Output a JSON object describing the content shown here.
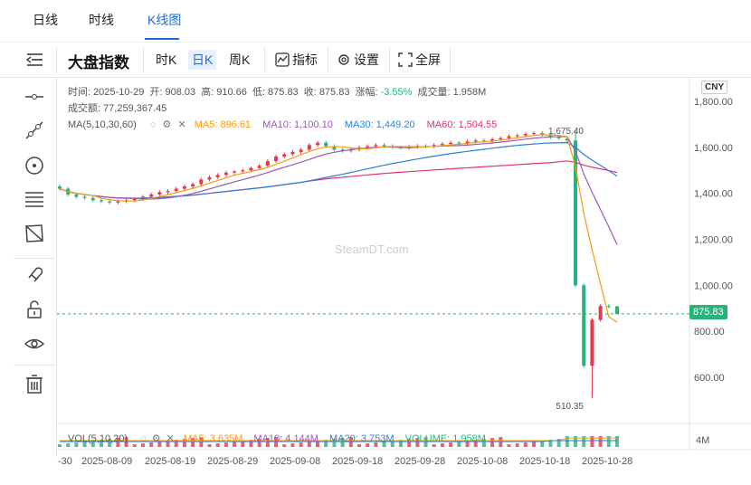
{
  "tabs": [
    {
      "label": "日线"
    },
    {
      "label": "时线"
    },
    {
      "label": "K线图"
    }
  ],
  "toolbar": {
    "title": "大盘指数",
    "intervals": [
      "时K",
      "日K",
      "周K"
    ],
    "indicator_label": "指标",
    "settings_label": "设置",
    "fullscreen_label": "全屏"
  },
  "info": {
    "time_label": "时间:",
    "time": "2025-10-29",
    "open_label": "开:",
    "open": "908.03",
    "high_label": "高:",
    "high": "910.66",
    "low_label": "低:",
    "low": "875.83",
    "close_label": "收:",
    "close": "875.83",
    "change_label": "涨幅:",
    "change": "-3.55%",
    "volume_label": "成交量:",
    "volume": "1.958M",
    "turnover_label": "成交额:",
    "turnover": "77,259,367.45"
  },
  "ma_legend": {
    "name": "MA(5,10,30,60)",
    "ma5": "MA5: 896.61",
    "ma10": "MA10: 1,100.10",
    "ma30": "MA30: 1,449.20",
    "ma60": "MA60: 1,504.55"
  },
  "vol_legend": {
    "name": "VOL(5,10,20)",
    "ma5": "MA5: 3.635M",
    "ma10": "MA10: 4.144M",
    "ma20": "MA20: 3.753M",
    "volume": "VOLUME: 1.958M"
  },
  "currency": "CNY",
  "current_price": "875.83",
  "watermark": "SteamDT.com",
  "annotations": {
    "high_mark": "1,675.40",
    "low_mark": "510.35"
  },
  "y_axis_labels": [
    "1,800.00",
    "1,600.00",
    "1,400.00",
    "1,200.00",
    "1,000.00",
    "800.00",
    "600.00"
  ],
  "vol_axis_label": "4M",
  "x_axis_labels": [
    "-30",
    "2025-08-09",
    "2025-08-19",
    "2025-08-29",
    "2025-09-08",
    "2025-09-18",
    "2025-09-28",
    "2025-10-08",
    "2025-10-18",
    "2025-10-28"
  ],
  "colors": {
    "up": "#e8364c",
    "down": "#2ab27b",
    "ma5": "#f39c12",
    "ma10": "#9b59b6",
    "ma30": "#2f7fd8",
    "ma60": "#e0336f",
    "accent": "#1e6bd6"
  },
  "chart_data": {
    "type": "candlestick",
    "y_range": [
      450,
      1850
    ],
    "closes_series": [
      1420,
      1395,
      1385,
      1380,
      1370,
      1365,
      1360,
      1365,
      1370,
      1375,
      1385,
      1395,
      1405,
      1410,
      1420,
      1430,
      1440,
      1460,
      1470,
      1480,
      1490,
      1495,
      1500,
      1510,
      1520,
      1540,
      1560,
      1570,
      1580,
      1590,
      1610,
      1620,
      1605,
      1590,
      1585,
      1590,
      1600,
      1605,
      1610,
      1605,
      1600,
      1598,
      1602,
      1606,
      1604,
      1610,
      1615,
      1620,
      1618,
      1625,
      1630,
      1628,
      1635,
      1640,
      1648,
      1652,
      1658,
      1662,
      1655,
      1645,
      1640,
      1630,
      1000,
      650,
      850,
      910,
      908,
      876
    ],
    "last_candle": {
      "date": "2025-10-29",
      "open": 908.03,
      "high": 910.66,
      "low": 875.83,
      "close": 875.83
    },
    "ma_series_end": {
      "ma5": 896.61,
      "ma10": 1100.1,
      "ma30": 1449.2,
      "ma60": 1504.55
    }
  }
}
